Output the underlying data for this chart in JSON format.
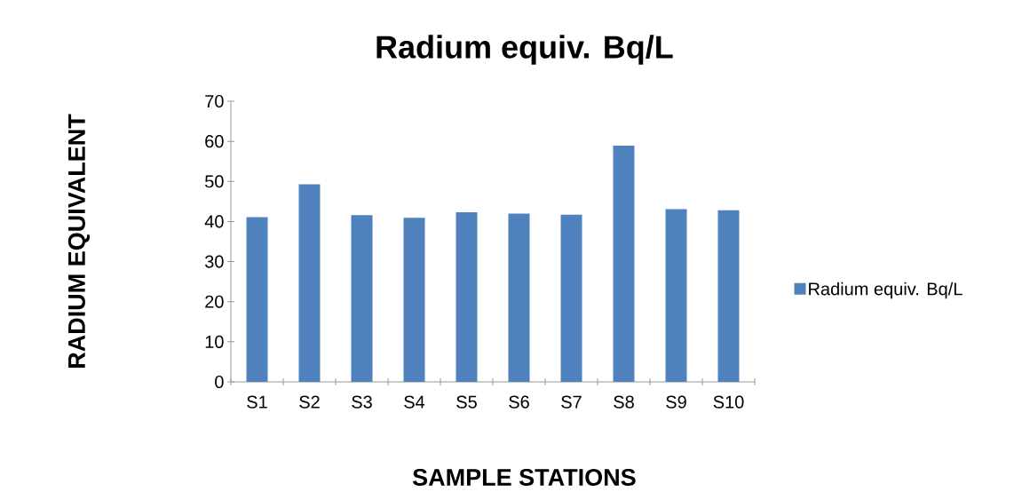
{
  "chart_data": {
    "type": "bar",
    "title": "Radium equiv.  Bq/L",
    "xlabel": "SAMPLE STATIONS",
    "ylabel": "RADIUM EQUIVALENT",
    "categories": [
      "S1",
      "S2",
      "S3",
      "S4",
      "S5",
      "S6",
      "S7",
      "S8",
      "S9",
      "S10"
    ],
    "series": [
      {
        "name": "Radium equiv.  Bq/L",
        "color": "#4f81bd",
        "values": [
          41.1,
          49.3,
          41.6,
          40.9,
          42.3,
          42.0,
          41.7,
          58.9,
          43.1,
          42.8
        ]
      }
    ],
    "ylim": [
      0,
      70
    ],
    "yticks": [
      0,
      10,
      20,
      30,
      40,
      50,
      60,
      70
    ],
    "grid": false,
    "legend": "right"
  }
}
